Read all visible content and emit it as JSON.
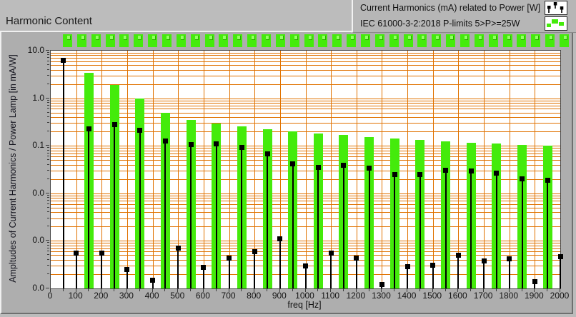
{
  "window": {
    "title": "Harmonic Content"
  },
  "legend": {
    "items": [
      {
        "label": "Current Harmonics (mA) related to Power [W]",
        "icon": "stem-square-markers-icon"
      },
      {
        "label": "IEC 61000-3-2:2018 P-limits 5>P>=25W",
        "icon": "green-limit-bars-icon"
      }
    ]
  },
  "led_row": {
    "count": 36,
    "color": "#44eb0b"
  },
  "colors": {
    "grid": "#e07200",
    "bar_green": "#44eb0b",
    "stem_black": "#000000",
    "panel_gray": "#bcbcbc",
    "widget_gray": "#aeaeae"
  },
  "chart_data": {
    "type": "bar",
    "title": "Harmonic Content",
    "xlabel": "freq [Hz]",
    "ylabel": "Ampltudes of Current Harmonics / Power Lamp [in mA/W]",
    "x_axis": {
      "min": 0,
      "max": 2000,
      "major_tick": 100,
      "minor_tick": 50,
      "tick_labels": [
        "0",
        "100",
        "200",
        "300",
        "400",
        "500",
        "600",
        "700",
        "800",
        "900",
        "1000",
        "1100",
        "1200",
        "1300",
        "1400",
        "1500",
        "1600",
        "1700",
        "1800",
        "1900",
        "2000"
      ]
    },
    "y_axis": {
      "scale": "log",
      "min": 0.0001,
      "max": 10,
      "tick_labels": [
        "10.0",
        "1.0",
        "0.1",
        "0.0",
        "0.0",
        "0.0"
      ]
    },
    "grid": {
      "visible": true,
      "color": "#e07200"
    },
    "legend_position": "top-right",
    "series": [
      {
        "name": "IEC 61000-3-2:2018 P-limits 5>P>=25W",
        "style": "bar",
        "color": "#44eb0b",
        "x": [
          150,
          250,
          350,
          450,
          550,
          650,
          750,
          850,
          950,
          1050,
          1150,
          1250,
          1350,
          1450,
          1550,
          1650,
          1750,
          1850,
          1950
        ],
        "values": [
          3.4,
          1.9,
          1.0,
          0.5,
          0.35,
          0.296,
          0.257,
          0.226,
          0.203,
          0.183,
          0.167,
          0.154,
          0.143,
          0.133,
          0.124,
          0.117,
          0.11,
          0.104,
          0.099
        ]
      },
      {
        "name": "Current Harmonics (mA) related to Power [W]",
        "style": "stem-square-marker",
        "color": "#000000",
        "x": [
          50,
          100,
          150,
          200,
          250,
          300,
          350,
          400,
          450,
          500,
          550,
          600,
          650,
          700,
          750,
          800,
          850,
          900,
          950,
          1000,
          1050,
          1100,
          1150,
          1200,
          1250,
          1300,
          1350,
          1400,
          1450,
          1500,
          1550,
          1600,
          1650,
          1700,
          1750,
          1800,
          1850,
          1900,
          1950,
          2000
        ],
        "values": [
          6.3,
          0.00055,
          0.23,
          0.00055,
          0.28,
          0.00025,
          0.21,
          0.00015,
          0.125,
          0.0007,
          0.107,
          0.00028,
          0.11,
          0.00044,
          0.092,
          0.0006,
          0.068,
          0.0011,
          0.041,
          0.0003,
          0.035,
          0.00055,
          0.039,
          0.00043,
          0.034,
          0.00012,
          0.025,
          0.00029,
          0.025,
          0.00031,
          0.031,
          0.0005,
          0.03,
          0.00038,
          0.027,
          0.00042,
          0.02,
          0.00014,
          0.019,
          0.00047
        ]
      }
    ]
  }
}
